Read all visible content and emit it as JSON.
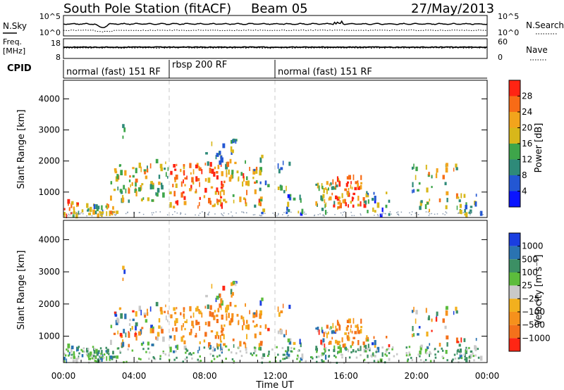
{
  "header": {
    "station": "South Pole Station (fitACF)",
    "beam": "Beam 05",
    "date": "27/May/2013"
  },
  "side_labels": {
    "nsky": "N.Sky",
    "nsearch": "N.Search",
    "freq_line1": "Freq.",
    "freq_line2": "[MHz]",
    "nave": "Nave",
    "cpid": "CPID"
  },
  "noise_panel": {
    "left_ticks": [
      "10^5",
      "10^0"
    ],
    "right_ticks": [
      "10^5",
      "10^0"
    ]
  },
  "freq_panel": {
    "left_ticks": [
      "18",
      "8"
    ],
    "right_ticks": [
      "60",
      "0"
    ]
  },
  "cpid": [
    {
      "label": "normal (fast) 151 RF",
      "start_hour": 0
    },
    {
      "label": "rbsp 200 RF",
      "start_hour": 6
    },
    {
      "label": "normal (fast) 151 RF",
      "start_hour": 12
    }
  ],
  "colors": {
    "accent_black": "#000000",
    "grid_dash": "#c8c8c8",
    "power_scale": [
      "#0a14ff",
      "#2357d3",
      "#2e8a79",
      "#3ea54a",
      "#d8b71a",
      "#f2a41c",
      "#f86b16",
      "#ff2413"
    ],
    "velocity_scale": [
      "#1a3ee0",
      "#2a73b1",
      "#3c8f64",
      "#5cbc3c",
      "#c9c9c9",
      "#f2b01e",
      "#f6911c",
      "#f4711b",
      "#ff2614"
    ]
  },
  "chart_data": [
    {
      "type": "heatmap",
      "name": "power",
      "ylabel": "Slant Range [km]",
      "y_ticks": [
        1000,
        2000,
        3000,
        4000
      ],
      "ylim": [
        180,
        4600
      ],
      "xlim": [
        0,
        24
      ],
      "colorbar_label": "Power [dB]",
      "colorbar_ticks": [
        4,
        8,
        12,
        16,
        20,
        24,
        28
      ],
      "colorbar_range": [
        0,
        32
      ]
    },
    {
      "type": "heatmap",
      "name": "velocity",
      "ylabel": "Slant Range [km]",
      "y_ticks": [
        1000,
        2000,
        3000,
        4000
      ],
      "ylim": [
        180,
        4600
      ],
      "xlim": [
        0,
        24
      ],
      "colorbar_label": "Velocity [m s⁻¹]",
      "colorbar_ticks": [
        "1000",
        "500",
        "100",
        "25",
        "−25",
        "−100",
        "−500",
        "−1000"
      ]
    }
  ],
  "x_axis": {
    "ticks": [
      "00:00",
      "04:00",
      "08:00",
      "12:00",
      "16:00",
      "20:00",
      "00:00"
    ],
    "label": "Time UT"
  }
}
